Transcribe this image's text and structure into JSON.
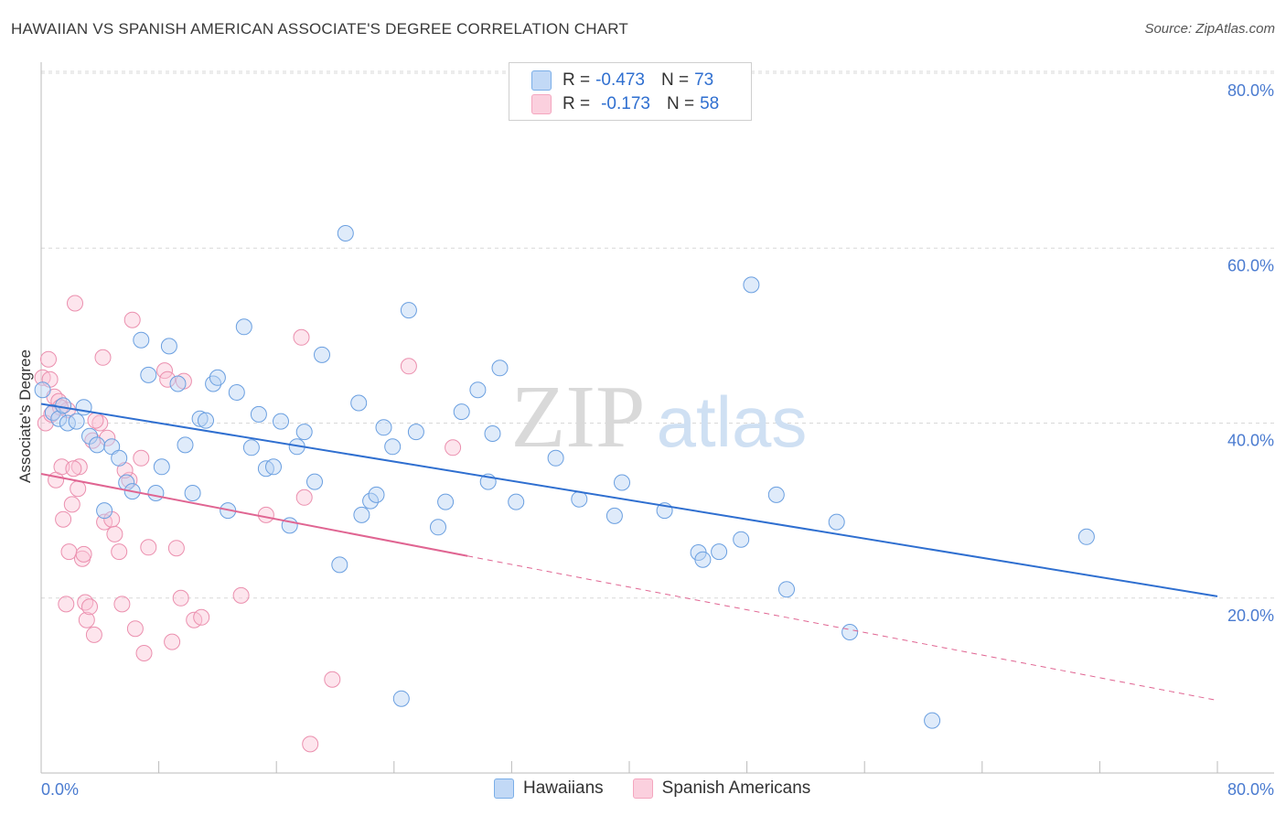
{
  "title": "HAWAIIAN VS SPANISH AMERICAN ASSOCIATE'S DEGREE CORRELATION CHART",
  "source": "Source: ZipAtlas.com",
  "watermark": {
    "zip": "ZIP",
    "atlas": "atlas"
  },
  "legend": {
    "r_label": "R =",
    "n_label": "N =",
    "rows": [
      {
        "r": "-0.473",
        "n": "73"
      },
      {
        "r": "-0.173",
        "n": "58"
      }
    ]
  },
  "chart_data": {
    "type": "scatter",
    "title": "HAWAIIAN VS SPANISH AMERICAN ASSOCIATE'S DEGREE CORRELATION CHART",
    "xlabel": "",
    "ylabel": "Associate's Degree",
    "xlim": [
      0,
      80
    ],
    "ylim": [
      0,
      82
    ],
    "x_tick_labels": [
      "0.0%",
      "80.0%"
    ],
    "y_ticks": [
      20,
      40,
      60,
      80
    ],
    "y_tick_labels": [
      "20.0%",
      "40.0%",
      "60.0%",
      "80.0%"
    ],
    "grid": true,
    "legend_position": "top-center",
    "series": [
      {
        "name": "Hawaiians",
        "color": "#7aaee8",
        "line_color": "#2f6fd0",
        "trend": {
          "x0": 0,
          "y0": 42.2,
          "x1": 80,
          "y1": 20.2,
          "solid_until": 80
        },
        "points": [
          [
            0.1,
            43.8
          ],
          [
            0.8,
            41.2
          ],
          [
            1.2,
            40.5
          ],
          [
            1.5,
            42.0
          ],
          [
            1.8,
            40.0
          ],
          [
            2.4,
            40.2
          ],
          [
            2.9,
            41.8
          ],
          [
            3.3,
            38.5
          ],
          [
            3.8,
            37.5
          ],
          [
            4.3,
            30.0
          ],
          [
            4.8,
            37.3
          ],
          [
            5.3,
            36.0
          ],
          [
            5.8,
            33.2
          ],
          [
            6.2,
            32.2
          ],
          [
            6.8,
            49.5
          ],
          [
            7.3,
            45.5
          ],
          [
            7.8,
            32.0
          ],
          [
            8.2,
            35.0
          ],
          [
            8.7,
            48.8
          ],
          [
            9.3,
            44.5
          ],
          [
            9.8,
            37.5
          ],
          [
            10.3,
            32.0
          ],
          [
            10.8,
            40.5
          ],
          [
            11.2,
            40.3
          ],
          [
            11.7,
            44.5
          ],
          [
            12.0,
            45.2
          ],
          [
            12.7,
            30.0
          ],
          [
            13.3,
            43.5
          ],
          [
            13.8,
            51.0
          ],
          [
            14.3,
            37.2
          ],
          [
            14.8,
            41.0
          ],
          [
            15.3,
            34.8
          ],
          [
            15.8,
            35.0
          ],
          [
            16.3,
            40.2
          ],
          [
            16.9,
            28.3
          ],
          [
            17.4,
            37.3
          ],
          [
            17.9,
            39.0
          ],
          [
            18.6,
            33.3
          ],
          [
            19.1,
            47.8
          ],
          [
            20.3,
            23.8
          ],
          [
            20.7,
            61.7
          ],
          [
            21.6,
            42.3
          ],
          [
            21.8,
            29.5
          ],
          [
            22.4,
            31.1
          ],
          [
            22.8,
            31.8
          ],
          [
            23.3,
            39.5
          ],
          [
            23.9,
            37.3
          ],
          [
            24.5,
            8.5
          ],
          [
            25.0,
            52.9
          ],
          [
            25.5,
            39.0
          ],
          [
            27.0,
            28.1
          ],
          [
            27.5,
            31.0
          ],
          [
            28.6,
            41.3
          ],
          [
            29.7,
            43.8
          ],
          [
            30.4,
            33.3
          ],
          [
            30.7,
            38.8
          ],
          [
            31.2,
            46.3
          ],
          [
            32.3,
            31.0
          ],
          [
            35.0,
            36.0
          ],
          [
            36.6,
            31.3
          ],
          [
            39.0,
            29.4
          ],
          [
            39.5,
            33.2
          ],
          [
            42.4,
            30.0
          ],
          [
            44.7,
            25.2
          ],
          [
            45.0,
            24.4
          ],
          [
            46.1,
            25.3
          ],
          [
            47.6,
            26.7
          ],
          [
            48.3,
            55.8
          ],
          [
            50.0,
            31.8
          ],
          [
            50.7,
            21.0
          ],
          [
            54.1,
            28.7
          ],
          [
            55.0,
            16.1
          ],
          [
            60.6,
            6.0
          ],
          [
            71.1,
            27.0
          ]
        ]
      },
      {
        "name": "Spanish Americans",
        "color": "#f4a6bf",
        "line_color": "#e06592",
        "trend": {
          "x0": 0,
          "y0": 34.2,
          "x1": 80,
          "y1": 8.3,
          "solid_until": 29
        },
        "points": [
          [
            0.1,
            45.2
          ],
          [
            0.3,
            40.0
          ],
          [
            0.5,
            47.3
          ],
          [
            0.7,
            41.0
          ],
          [
            0.9,
            43.0
          ],
          [
            1.0,
            33.5
          ],
          [
            1.2,
            42.5
          ],
          [
            1.4,
            35.0
          ],
          [
            1.5,
            29.0
          ],
          [
            1.7,
            19.3
          ],
          [
            1.8,
            41.5
          ],
          [
            1.9,
            25.3
          ],
          [
            2.1,
            30.7
          ],
          [
            2.3,
            53.7
          ],
          [
            2.5,
            32.5
          ],
          [
            2.6,
            35.0
          ],
          [
            2.8,
            24.5
          ],
          [
            2.9,
            25.0
          ],
          [
            3.0,
            19.5
          ],
          [
            3.1,
            17.5
          ],
          [
            3.3,
            19.0
          ],
          [
            3.5,
            38.0
          ],
          [
            3.6,
            15.8
          ],
          [
            4.0,
            40.0
          ],
          [
            4.2,
            47.5
          ],
          [
            4.3,
            28.7
          ],
          [
            4.5,
            38.3
          ],
          [
            4.8,
            29.0
          ],
          [
            5.0,
            27.3
          ],
          [
            5.3,
            25.3
          ],
          [
            5.5,
            19.3
          ],
          [
            6.0,
            33.5
          ],
          [
            6.2,
            51.8
          ],
          [
            6.4,
            16.5
          ],
          [
            6.8,
            36.0
          ],
          [
            7.0,
            13.7
          ],
          [
            7.3,
            25.8
          ],
          [
            8.4,
            46.0
          ],
          [
            8.6,
            45.0
          ],
          [
            8.9,
            15.0
          ],
          [
            9.2,
            25.7
          ],
          [
            9.5,
            20.0
          ],
          [
            9.7,
            44.8
          ],
          [
            10.4,
            17.5
          ],
          [
            10.9,
            17.8
          ],
          [
            13.6,
            20.3
          ],
          [
            15.3,
            29.5
          ],
          [
            17.7,
            49.8
          ],
          [
            17.9,
            31.5
          ],
          [
            18.3,
            3.3
          ],
          [
            19.8,
            10.7
          ],
          [
            25.0,
            46.5
          ],
          [
            28.0,
            37.2
          ],
          [
            0.6,
            45.0
          ],
          [
            1.3,
            41.8
          ],
          [
            2.2,
            34.8
          ],
          [
            3.7,
            40.3
          ],
          [
            5.7,
            34.6
          ]
        ]
      }
    ]
  }
}
